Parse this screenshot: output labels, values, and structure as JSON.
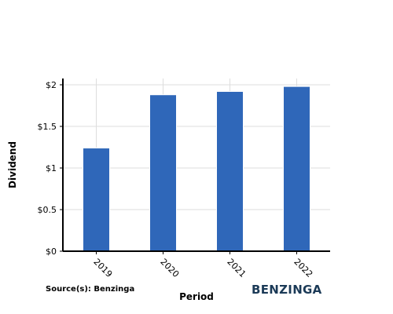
{
  "chart_data": {
    "type": "bar",
    "categories": [
      "2019",
      "2020",
      "2021",
      "2022"
    ],
    "values": [
      1.24,
      1.88,
      1.92,
      1.98
    ],
    "xlabel": "Period",
    "ylabel": "Dividend",
    "ylim": [
      0,
      2
    ],
    "yticks": [
      0,
      0.5,
      1,
      1.5,
      2
    ],
    "ytick_labels": [
      "$0",
      "$0.5",
      "$1",
      "$1.5",
      "$2"
    ],
    "grid": true,
    "bar_color": "#2f67b9"
  },
  "source_text": "Source(s): Benzinga",
  "logo_text": "BENZINGA"
}
